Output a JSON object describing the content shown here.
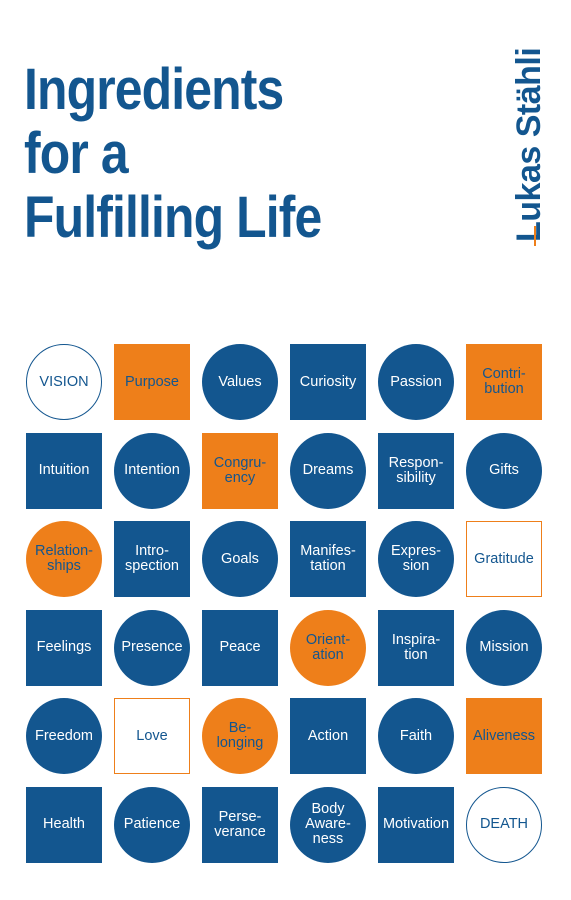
{
  "title_lines": [
    "Ingredients",
    "for a",
    "Fulfilling Life"
  ],
  "author": "Lukas Stähli",
  "colors": {
    "blue": "#13568f",
    "orange": "#ee7f1a",
    "background": "#ffffff"
  },
  "tiles": [
    [
      {
        "text": "VISION",
        "shape": "circle",
        "style": "outline-blue"
      },
      {
        "text": "Purpose",
        "shape": "square",
        "style": "orange"
      },
      {
        "text": "Values",
        "shape": "circle",
        "style": "blue"
      },
      {
        "text": "Curiosity",
        "shape": "square",
        "style": "blue"
      },
      {
        "text": "Passion",
        "shape": "circle",
        "style": "blue"
      },
      {
        "text": "Contri-\nbution",
        "shape": "square",
        "style": "orange"
      }
    ],
    [
      {
        "text": "Intuition",
        "shape": "square",
        "style": "blue"
      },
      {
        "text": "Intention",
        "shape": "circle",
        "style": "blue"
      },
      {
        "text": "Congru-\nency",
        "shape": "square",
        "style": "orange"
      },
      {
        "text": "Dreams",
        "shape": "circle",
        "style": "blue"
      },
      {
        "text": "Respon-\nsibility",
        "shape": "square",
        "style": "blue"
      },
      {
        "text": "Gifts",
        "shape": "circle",
        "style": "blue"
      }
    ],
    [
      {
        "text": "Relation-\nships",
        "shape": "circle",
        "style": "orange"
      },
      {
        "text": "Intro-\nspection",
        "shape": "square",
        "style": "blue"
      },
      {
        "text": "Goals",
        "shape": "circle",
        "style": "blue"
      },
      {
        "text": "Manifes-\ntation",
        "shape": "square",
        "style": "blue"
      },
      {
        "text": "Expres-\nsion",
        "shape": "circle",
        "style": "blue"
      },
      {
        "text": "Gratitude",
        "shape": "square",
        "style": "outline-orange"
      }
    ],
    [
      {
        "text": "Feelings",
        "shape": "square",
        "style": "blue"
      },
      {
        "text": "Presence",
        "shape": "circle",
        "style": "blue"
      },
      {
        "text": "Peace",
        "shape": "square",
        "style": "blue"
      },
      {
        "text": "Orient-\nation",
        "shape": "circle",
        "style": "orange"
      },
      {
        "text": "Inspira-\ntion",
        "shape": "square",
        "style": "blue"
      },
      {
        "text": "Mission",
        "shape": "circle",
        "style": "blue"
      }
    ],
    [
      {
        "text": "Freedom",
        "shape": "circle",
        "style": "blue"
      },
      {
        "text": "Love",
        "shape": "square",
        "style": "outline-orange"
      },
      {
        "text": "Be-\nlonging",
        "shape": "circle",
        "style": "orange"
      },
      {
        "text": "Action",
        "shape": "square",
        "style": "blue"
      },
      {
        "text": "Faith",
        "shape": "circle",
        "style": "blue"
      },
      {
        "text": "Aliveness",
        "shape": "square",
        "style": "orange"
      }
    ],
    [
      {
        "text": "Health",
        "shape": "square",
        "style": "blue"
      },
      {
        "text": "Patience",
        "shape": "circle",
        "style": "blue"
      },
      {
        "text": "Perse-\nverance",
        "shape": "square",
        "style": "blue"
      },
      {
        "text": "Body\nAware-\nness",
        "shape": "circle",
        "style": "blue"
      },
      {
        "text": "Motivation",
        "shape": "square",
        "style": "blue"
      },
      {
        "text": "DEATH",
        "shape": "circle",
        "style": "outline-blue"
      }
    ]
  ]
}
